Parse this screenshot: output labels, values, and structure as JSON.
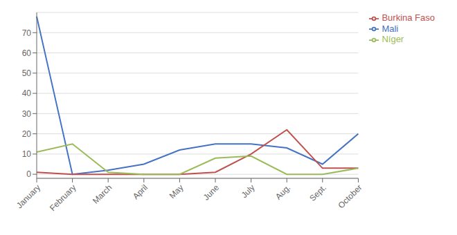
{
  "chart_data": {
    "type": "line",
    "categories": [
      "January",
      "February",
      "March",
      "April",
      "May",
      "June",
      "July",
      "Aug.",
      "Sept.",
      "October"
    ],
    "series": [
      {
        "name": "Mali",
        "color": "#4472C4",
        "values": [
          78,
          0,
          2,
          5,
          12,
          15,
          15,
          13,
          5,
          20
        ]
      },
      {
        "name": "Burkina Faso",
        "color": "#C0504D",
        "values": [
          1,
          0,
          0,
          0,
          0,
          1,
          10,
          22,
          3,
          3
        ]
      },
      {
        "name": "Níger",
        "color": "#9BBB59",
        "values": [
          11,
          15,
          1,
          0,
          0,
          8,
          9,
          0,
          0,
          3
        ]
      }
    ],
    "ylim": [
      -2,
      80
    ],
    "yticks": [
      0,
      10,
      20,
      30,
      40,
      50,
      60,
      70
    ],
    "grid": true,
    "legend": "right"
  }
}
